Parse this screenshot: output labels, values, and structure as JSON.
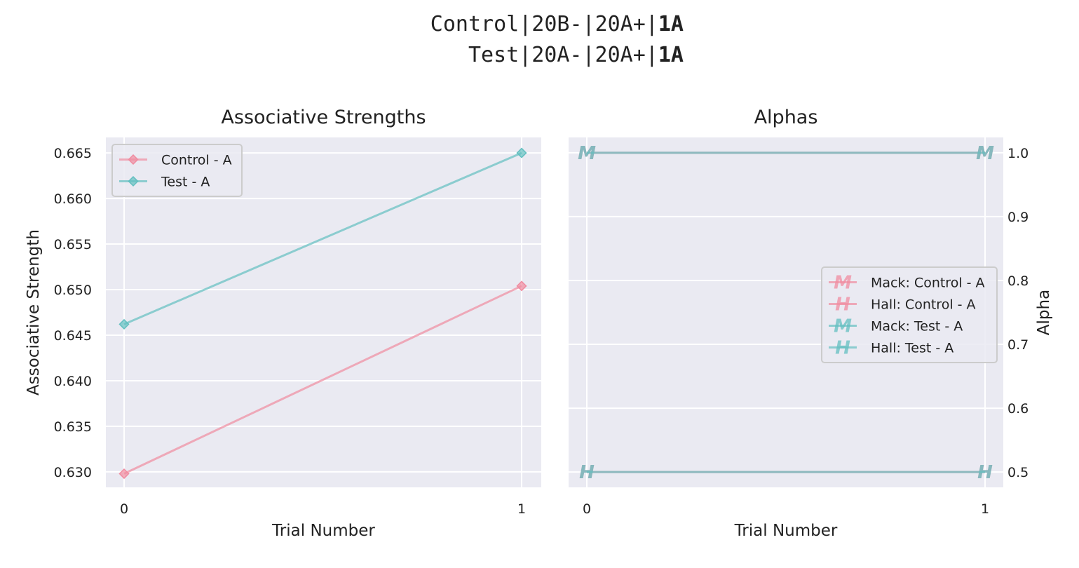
{
  "figure": {
    "suptitle_line1": {
      "prefix": "Control|20B-|20A+|",
      "bold": "1A"
    },
    "suptitle_line2": {
      "prefix": "Test|20A-|20A+|",
      "bold": "1A"
    }
  },
  "chart_data": [
    {
      "type": "line",
      "title": "Associative Strengths",
      "xlabel": "Trial Number",
      "ylabel": "Associative Strength",
      "x": [
        0,
        1
      ],
      "xticks": [
        "0",
        "1"
      ],
      "ylim": [
        0.6283,
        0.6667
      ],
      "yticks": [
        "0.630",
        "0.635",
        "0.640",
        "0.645",
        "0.650",
        "0.655",
        "0.660",
        "0.665"
      ],
      "grid": true,
      "legend_position": "upper-left",
      "series": [
        {
          "name": "Control - A",
          "values": [
            0.6298,
            0.6504
          ],
          "color": "#f08ca0",
          "marker": "diamond"
        },
        {
          "name": "Test - A",
          "values": [
            0.6462,
            0.665
          ],
          "color": "#63bfc0",
          "marker": "diamond"
        }
      ]
    },
    {
      "type": "line",
      "title": "Alphas",
      "xlabel": "Trial Number",
      "ylabel": "Alpha",
      "y_axis_side": "right",
      "x": [
        0,
        1
      ],
      "xticks": [
        "0",
        "1"
      ],
      "ylim": [
        0.476,
        1.024
      ],
      "yticks": [
        "0.5",
        "0.6",
        "0.7",
        "0.8",
        "0.9",
        "1.0"
      ],
      "grid": true,
      "legend_position": "center-right",
      "series": [
        {
          "name": "Mack: Control - A",
          "values": [
            1.0,
            1.0
          ],
          "color": "#f08ca0",
          "marker": "M"
        },
        {
          "name": "Hall: Control - A",
          "values": [
            0.5,
            0.5
          ],
          "color": "#f08ca0",
          "marker": "H"
        },
        {
          "name": "Mack: Test - A",
          "values": [
            1.0,
            1.0
          ],
          "color": "#63bfc0",
          "marker": "M"
        },
        {
          "name": "Hall: Test - A",
          "values": [
            0.5,
            0.5
          ],
          "color": "#63bfc0",
          "marker": "H"
        }
      ]
    }
  ]
}
